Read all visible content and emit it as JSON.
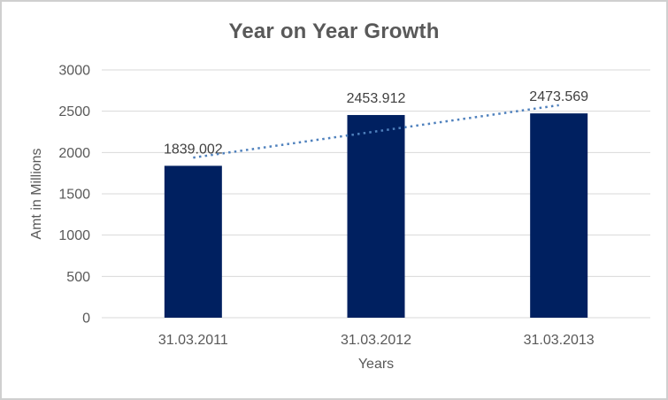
{
  "chart_data": {
    "type": "bar",
    "title": "Year on Year Growth",
    "xlabel": "Years",
    "ylabel": "Amt in Millions",
    "categories": [
      "31.03.2011",
      "31.03.2012",
      "31.03.2013"
    ],
    "values": [
      1839.002,
      2453.912,
      2473.569
    ],
    "data_labels": [
      "1839.002",
      "2453.912",
      "2473.569"
    ],
    "ylim": [
      0,
      3000
    ],
    "ytick_step": 500,
    "yticks": [
      "0",
      "500",
      "1000",
      "1500",
      "2000",
      "2500",
      "3000"
    ],
    "grid": true,
    "legend": "none",
    "trendline": {
      "type": "linear",
      "style": "dotted"
    },
    "colors": {
      "bar": "#002060",
      "trendline": "#4F81BD",
      "gridline": "#D9D9D9",
      "axis_text": "#595959",
      "data_label_text": "#404040",
      "title_text": "#595959",
      "frame_border": "#CFCFCF"
    }
  }
}
